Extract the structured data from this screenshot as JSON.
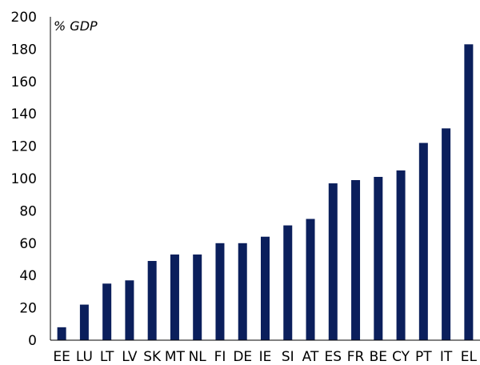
{
  "chart_data": {
    "type": "bar",
    "title": "",
    "xlabel": "",
    "ylabel": "% GDP",
    "categories": [
      "EE",
      "LU",
      "LT",
      "LV",
      "SK",
      "MT",
      "NL",
      "FI",
      "DE",
      "IE",
      "SI",
      "AT",
      "ES",
      "FR",
      "BE",
      "CY",
      "PT",
      "IT",
      "EL"
    ],
    "values": [
      8,
      22,
      35,
      37,
      49,
      53,
      53,
      60,
      60,
      64,
      71,
      75,
      97,
      99,
      101,
      105,
      122,
      131,
      183
    ],
    "ylim": [
      0,
      200
    ],
    "yticks": [
      0,
      20,
      40,
      60,
      80,
      100,
      120,
      140,
      160,
      180,
      200
    ],
    "grid": false,
    "legend": "none",
    "bar_color": "#0b1f5c",
    "axis_color": "#000000"
  }
}
